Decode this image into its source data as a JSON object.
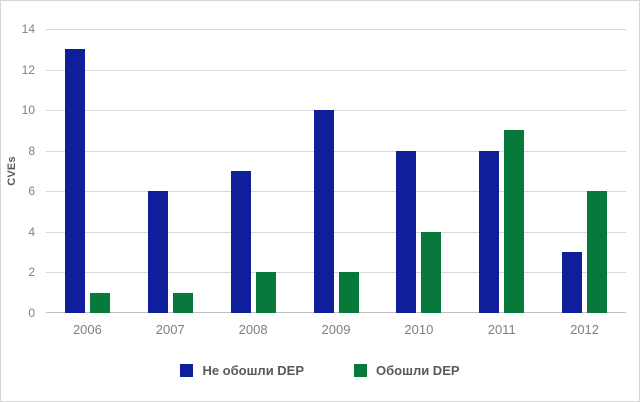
{
  "chart_data": {
    "type": "bar",
    "title": "",
    "ylabel": "CVEs",
    "xlabel": "",
    "categories": [
      "2006",
      "2007",
      "2008",
      "2009",
      "2010",
      "2011",
      "2012"
    ],
    "series": [
      {
        "name": "Не обошли DEP",
        "color": "#0f1e9b",
        "values": [
          13,
          6,
          7,
          10,
          8,
          8,
          3
        ]
      },
      {
        "name": "Обошли DEP",
        "color": "#077a3b",
        "values": [
          1,
          1,
          2,
          2,
          4,
          9,
          6
        ]
      }
    ],
    "ylim": [
      0,
      14
    ],
    "yticks": [
      0,
      2,
      4,
      6,
      8,
      10,
      12,
      14
    ],
    "grid": "horizontal",
    "legend_position": "bottom"
  },
  "colors": {
    "background": "#ffffff",
    "frame_border": "#d6d6d6",
    "gridline": "#d9d9d9",
    "axis_line": "#bfbfbf",
    "tick_label": "#7f7f7f",
    "axis_title": "#595959",
    "legend_text": "#595959"
  }
}
